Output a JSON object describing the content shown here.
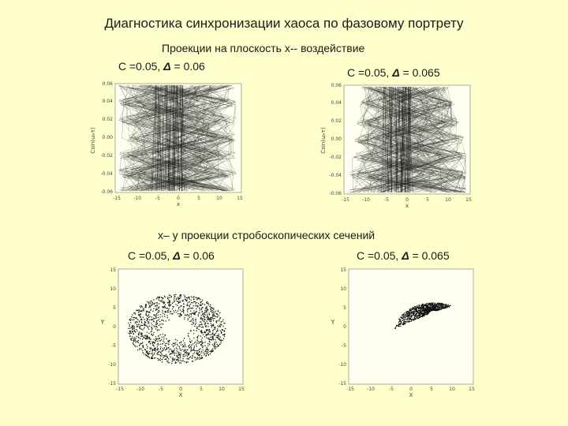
{
  "slide_title": "Диагностика синхронизации хаоса по фазовому портрету",
  "section1_title": "Проекции на плоскость x-- воздействие",
  "section2_title": "x– y проекции стробоскопических сечений",
  "panel_labels": [
    {
      "c": "C =0.05,",
      "delta_symbol": "Δ",
      "delta_value": "= 0.06"
    },
    {
      "c": "C =0.05,",
      "delta_symbol": "Δ",
      "delta_value": "= 0.065"
    },
    {
      "c": "C =0.05,",
      "delta_symbol": "Δ",
      "delta_value": "= 0.06"
    },
    {
      "c": "C =0.05,",
      "delta_symbol": "Δ",
      "delta_value": "= 0.065"
    }
  ],
  "plots": {
    "p1": {
      "xlabel": "x",
      "ylabel": "Csin(ωₑτ)",
      "xticks": [
        "-15",
        "-10",
        "-5",
        "0",
        "5",
        "10",
        "15"
      ],
      "yticks": [
        "0.06",
        "0.04",
        "0.02",
        "0.00",
        "-0.02",
        "-0.04",
        "-0.06"
      ]
    },
    "p2": {
      "xlabel": "x",
      "ylabel": "Csin(ωₑτ)",
      "xticks": [
        "-15",
        "-10",
        "-5",
        "0",
        "5",
        "10",
        "15"
      ],
      "yticks": [
        "0.06",
        "0.04",
        "0.02",
        "0.00",
        "-0.02",
        "-0.04",
        "-0.06"
      ]
    },
    "p3": {
      "xlabel": "X",
      "ylabel": "Y",
      "xticks": [
        "-15",
        "-10",
        "-5",
        "0",
        "5",
        "10",
        "15"
      ],
      "yticks": [
        "15",
        "10",
        "5",
        "0",
        "-5",
        "-10",
        "-15"
      ]
    },
    "p4": {
      "xlabel": "X",
      "ylabel": "Y",
      "xticks": [
        "-15",
        "-10",
        "-5",
        "0",
        "5",
        "10",
        "15"
      ],
      "yticks": [
        "15",
        "10",
        "5",
        "0",
        "-5",
        "-10",
        "-15"
      ]
    }
  }
}
